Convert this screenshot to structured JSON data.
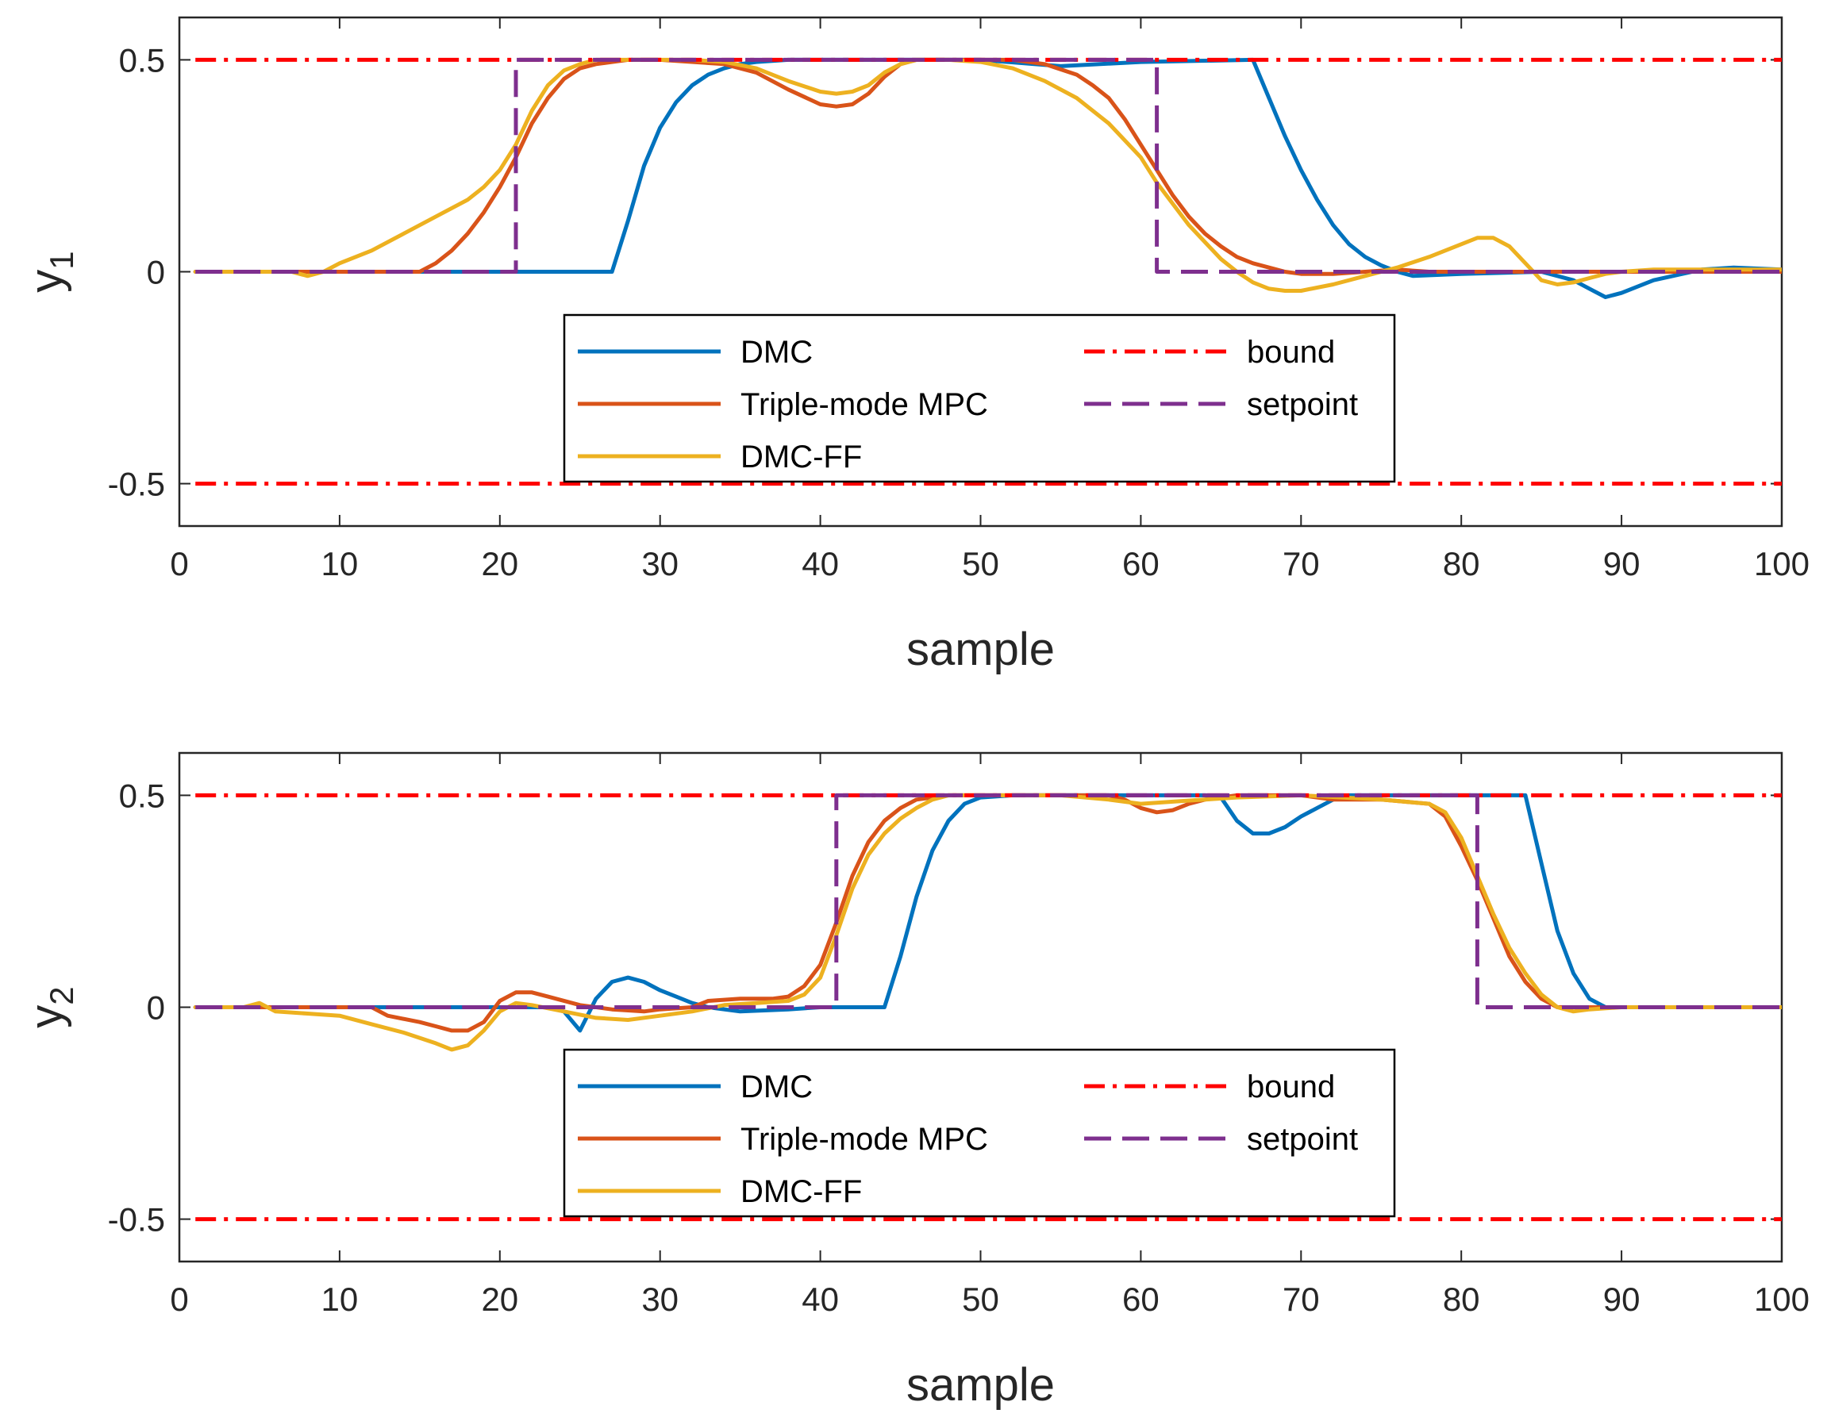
{
  "chart_data": [
    {
      "type": "line",
      "xlabel": "sample",
      "ylabel": "y",
      "ylabel_sub": "1",
      "xlim": [
        0,
        100
      ],
      "ylim": [
        -0.6,
        0.6
      ],
      "xticks": [
        0,
        10,
        20,
        30,
        40,
        50,
        60,
        70,
        80,
        90,
        100
      ],
      "yticks": [
        -0.5,
        0,
        0.5
      ],
      "ytick_labels": [
        "-0.5",
        "0",
        "0.5"
      ],
      "legend_position": "lower-center",
      "series": [
        {
          "name": "DMC",
          "color": "#0072BD",
          "style": "solid",
          "x": [
            1,
            27,
            28,
            29,
            30,
            31,
            32,
            33,
            34,
            35,
            36,
            38,
            40,
            45,
            50,
            55,
            60,
            67,
            68,
            69,
            70,
            71,
            72,
            73,
            74,
            75,
            76,
            77,
            80,
            85,
            87,
            88,
            89,
            90,
            92,
            95,
            97,
            100
          ],
          "y": [
            0,
            0,
            0.12,
            0.25,
            0.34,
            0.4,
            0.44,
            0.465,
            0.48,
            0.49,
            0.495,
            0.5,
            0.5,
            0.5,
            0.5,
            0.485,
            0.495,
            0.5,
            0.41,
            0.32,
            0.24,
            0.17,
            0.11,
            0.065,
            0.035,
            0.015,
            0.0,
            -0.01,
            -0.005,
            0.0,
            -0.02,
            -0.04,
            -0.06,
            -0.05,
            -0.02,
            0.005,
            0.01,
            0.005
          ]
        },
        {
          "name": "Triple-mode MPC",
          "color": "#D95319",
          "style": "solid",
          "x": [
            1,
            15,
            16,
            17,
            18,
            19,
            20,
            21,
            22,
            23,
            24,
            25,
            26,
            28,
            30,
            34,
            36,
            38,
            40,
            41,
            42,
            43,
            44,
            45,
            46,
            48,
            50,
            52,
            54,
            56,
            57,
            58,
            59,
            60,
            61,
            62,
            63,
            64,
            65,
            66,
            67,
            68,
            69,
            70,
            72,
            74,
            76,
            78,
            80,
            81,
            82,
            83,
            84,
            86,
            88,
            90,
            95,
            100
          ],
          "y": [
            0,
            0,
            0.02,
            0.05,
            0.09,
            0.14,
            0.2,
            0.27,
            0.35,
            0.41,
            0.455,
            0.48,
            0.49,
            0.5,
            0.5,
            0.49,
            0.47,
            0.43,
            0.395,
            0.39,
            0.395,
            0.42,
            0.46,
            0.49,
            0.5,
            0.5,
            0.5,
            0.5,
            0.49,
            0.465,
            0.44,
            0.41,
            0.36,
            0.3,
            0.24,
            0.18,
            0.13,
            0.09,
            0.06,
            0.035,
            0.02,
            0.01,
            0.0,
            -0.005,
            -0.005,
            0.0,
            0.005,
            0.0,
            0.0,
            0.0,
            0.0,
            0.0,
            0.0,
            0.0,
            0.0,
            0.0,
            0.0,
            0.0
          ]
        },
        {
          "name": "DMC-FF",
          "color": "#EDB120",
          "style": "solid",
          "x": [
            1,
            7,
            8,
            9,
            10,
            12,
            14,
            16,
            18,
            19,
            20,
            21,
            22,
            23,
            24,
            25,
            26,
            28,
            30,
            32,
            34,
            36,
            38,
            40,
            41,
            42,
            43,
            44,
            45,
            46,
            48,
            50,
            52,
            54,
            56,
            58,
            60,
            61,
            62,
            63,
            64,
            65,
            66,
            67,
            68,
            69,
            70,
            72,
            74,
            76,
            78,
            80,
            81,
            82,
            83,
            84,
            85,
            86,
            87,
            88,
            89,
            90,
            92,
            95,
            100
          ],
          "y": [
            0,
            0,
            -0.01,
            0.0,
            0.02,
            0.05,
            0.09,
            0.13,
            0.17,
            0.2,
            0.24,
            0.3,
            0.38,
            0.44,
            0.475,
            0.49,
            0.5,
            0.5,
            0.5,
            0.5,
            0.495,
            0.48,
            0.45,
            0.425,
            0.42,
            0.425,
            0.44,
            0.47,
            0.49,
            0.5,
            0.5,
            0.495,
            0.48,
            0.45,
            0.41,
            0.35,
            0.27,
            0.21,
            0.16,
            0.11,
            0.07,
            0.03,
            0.0,
            -0.025,
            -0.04,
            -0.045,
            -0.045,
            -0.03,
            -0.01,
            0.01,
            0.035,
            0.065,
            0.08,
            0.08,
            0.06,
            0.02,
            -0.02,
            -0.03,
            -0.025,
            -0.015,
            -0.005,
            0.0,
            0.005,
            0.005,
            0.005
          ]
        },
        {
          "name": "bound",
          "color": "#FF0000",
          "style": "dashdot",
          "x": [
            1,
            100
          ],
          "y": [
            0.5,
            0.5
          ],
          "y2": [
            -0.5,
            -0.5
          ]
        },
        {
          "name": "setpoint",
          "color": "#7E2F8E",
          "style": "dashed",
          "x": [
            1,
            21,
            21,
            61,
            61,
            100
          ],
          "y": [
            0,
            0,
            0.5,
            0.5,
            0,
            0
          ]
        }
      ]
    },
    {
      "type": "line",
      "xlabel": "sample",
      "ylabel": "y",
      "ylabel_sub": "2",
      "xlim": [
        0,
        100
      ],
      "ylim": [
        -0.6,
        0.6
      ],
      "xticks": [
        0,
        10,
        20,
        30,
        40,
        50,
        60,
        70,
        80,
        90,
        100
      ],
      "yticks": [
        -0.5,
        0,
        0.5
      ],
      "ytick_labels": [
        "-0.5",
        "0",
        "0.5"
      ],
      "legend_position": "lower-center",
      "series": [
        {
          "name": "DMC",
          "color": "#0072BD",
          "style": "solid",
          "x": [
            1,
            23,
            24,
            25,
            26,
            27,
            28,
            29,
            30,
            31,
            32,
            33,
            35,
            38,
            40,
            44,
            45,
            46,
            47,
            48,
            49,
            50,
            52,
            55,
            60,
            64,
            65,
            66,
            67,
            68,
            69,
            70,
            71,
            72,
            73,
            75,
            80,
            84,
            85,
            86,
            87,
            88,
            89,
            90,
            95,
            100
          ],
          "y": [
            0,
            0,
            -0.01,
            -0.055,
            0.02,
            0.06,
            0.07,
            0.06,
            0.04,
            0.025,
            0.01,
            0.0,
            -0.01,
            -0.005,
            0.0,
            0.0,
            0.12,
            0.26,
            0.37,
            0.44,
            0.48,
            0.495,
            0.5,
            0.5,
            0.5,
            0.5,
            0.495,
            0.44,
            0.41,
            0.41,
            0.425,
            0.45,
            0.47,
            0.49,
            0.5,
            0.5,
            0.5,
            0.5,
            0.34,
            0.18,
            0.08,
            0.02,
            0.0,
            0.0,
            0.0,
            0.0
          ]
        },
        {
          "name": "Triple-mode MPC",
          "color": "#D95319",
          "style": "solid",
          "x": [
            1,
            12,
            13,
            15,
            16,
            17,
            18,
            19,
            20,
            21,
            22,
            23,
            25,
            27,
            29,
            30,
            32,
            33,
            35,
            37,
            38,
            39,
            40,
            41,
            42,
            43,
            44,
            45,
            46,
            48,
            50,
            55,
            58,
            59,
            60,
            61,
            62,
            63,
            64,
            65,
            66,
            70,
            72,
            75,
            78,
            79,
            80,
            81,
            82,
            83,
            84,
            85,
            86,
            88,
            90,
            95,
            100
          ],
          "y": [
            0,
            0,
            -0.02,
            -0.035,
            -0.045,
            -0.055,
            -0.055,
            -0.035,
            0.015,
            0.035,
            0.035,
            0.025,
            0.005,
            -0.005,
            -0.01,
            -0.005,
            0.0,
            0.015,
            0.02,
            0.02,
            0.025,
            0.05,
            0.1,
            0.2,
            0.31,
            0.39,
            0.44,
            0.47,
            0.49,
            0.5,
            0.5,
            0.5,
            0.5,
            0.49,
            0.47,
            0.46,
            0.465,
            0.48,
            0.49,
            0.495,
            0.5,
            0.5,
            0.49,
            0.49,
            0.48,
            0.45,
            0.38,
            0.3,
            0.21,
            0.12,
            0.06,
            0.02,
            0.0,
            0.0,
            0.0,
            0.0,
            0.0
          ]
        },
        {
          "name": "DMC-FF",
          "color": "#EDB120",
          "style": "solid",
          "x": [
            1,
            4,
            5,
            6,
            8,
            10,
            12,
            14,
            16,
            17,
            18,
            19,
            20,
            21,
            22,
            24,
            26,
            28,
            30,
            32,
            34,
            36,
            38,
            39,
            40,
            41,
            42,
            43,
            44,
            45,
            46,
            47,
            48,
            50,
            55,
            58,
            60,
            62,
            64,
            66,
            70,
            75,
            78,
            79,
            80,
            81,
            82,
            83,
            84,
            85,
            86,
            87,
            88,
            90,
            95,
            100
          ],
          "y": [
            0,
            0.0,
            0.01,
            -0.01,
            -0.015,
            -0.02,
            -0.04,
            -0.06,
            -0.085,
            -0.1,
            -0.09,
            -0.055,
            -0.01,
            0.01,
            0.005,
            -0.01,
            -0.025,
            -0.03,
            -0.02,
            -0.01,
            0.005,
            0.01,
            0.015,
            0.03,
            0.07,
            0.17,
            0.28,
            0.36,
            0.41,
            0.445,
            0.47,
            0.49,
            0.5,
            0.5,
            0.5,
            0.49,
            0.48,
            0.485,
            0.49,
            0.495,
            0.5,
            0.49,
            0.48,
            0.46,
            0.4,
            0.31,
            0.22,
            0.14,
            0.08,
            0.03,
            0.0,
            -0.01,
            -0.005,
            0.0,
            0.0,
            0.0
          ]
        },
        {
          "name": "bound",
          "color": "#FF0000",
          "style": "dashdot",
          "x": [
            1,
            100
          ],
          "y": [
            0.5,
            0.5
          ],
          "y2": [
            -0.5,
            -0.5
          ]
        },
        {
          "name": "setpoint",
          "color": "#7E2F8E",
          "style": "dashed",
          "x": [
            1,
            41,
            41,
            81,
            81,
            100
          ],
          "y": [
            0,
            0,
            0.5,
            0.5,
            0,
            0
          ]
        }
      ]
    }
  ]
}
